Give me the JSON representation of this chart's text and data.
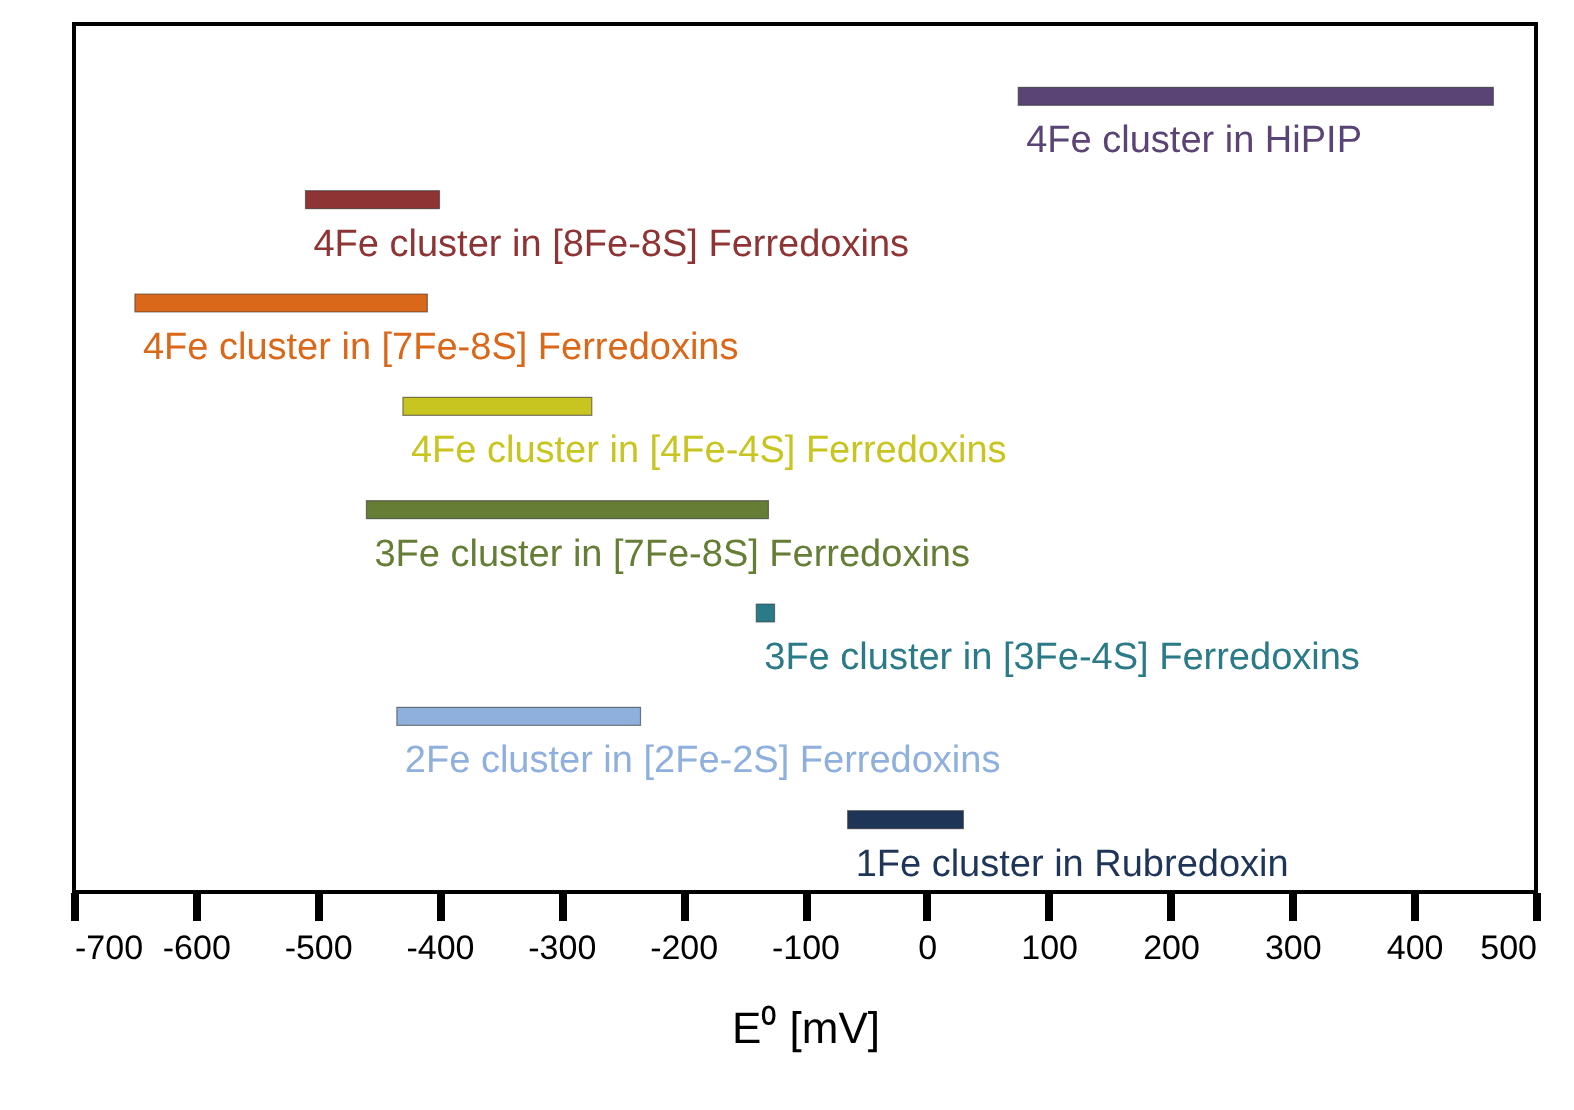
{
  "chart_data": {
    "type": "bar",
    "orientation": "horizontal",
    "xlabel": "E⁰ [mV]",
    "categories": [
      null,
      null,
      null,
      null,
      null,
      null,
      null,
      null
    ],
    "base": [
      75,
      -510,
      -650,
      -430,
      -460,
      -140,
      -435,
      -65
    ],
    "values": [
      390,
      110,
      240,
      155,
      330,
      15,
      200,
      95
    ],
    "colors": [
      "#5a4475",
      "#8e3434",
      "#d9681a",
      "#c8c420",
      "#667d36",
      "#2a7a88",
      "#8fb0dc",
      "#1e3557"
    ],
    "annotations": [
      "4Fe cluster in HiPIP",
      "4Fe cluster in [8Fe-8S] Ferredoxins",
      "4Fe cluster in [7Fe-8S] Ferredoxins",
      "4Fe cluster in [4Fe-4S] Ferredoxins",
      "3Fe cluster in [7Fe-8S] Ferredoxins",
      "3Fe cluster in [3Fe-4S] Ferredoxins",
      "2Fe cluster in [2Fe-2S] Ferredoxins",
      "1Fe cluster in Rubredoxin"
    ],
    "xlim": [
      -700,
      500
    ],
    "xticks": [
      -700,
      -600,
      -500,
      -400,
      -300,
      -200,
      -100,
      0,
      100,
      200,
      300,
      400,
      500
    ],
    "grid": false
  }
}
